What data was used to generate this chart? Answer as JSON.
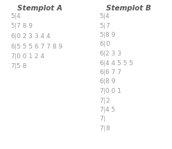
{
  "title_A": "Stemplot A",
  "title_B": "Stemplot B",
  "rows_A": [
    {
      "stem": "5",
      "leaves": "4"
    },
    {
      "stem": "5",
      "leaves": "7 8 9"
    },
    {
      "stem": "6",
      "leaves": "0 2 3 3 4 4"
    },
    {
      "stem": "6",
      "leaves": "5 5 5 6 7 7 8 9"
    },
    {
      "stem": "7",
      "leaves": "0 0 1 2 4"
    },
    {
      "stem": "7",
      "leaves": "5 8"
    }
  ],
  "rows_B": [
    {
      "stem": "5",
      "leaves": "4"
    },
    {
      "stem": "5",
      "leaves": "7"
    },
    {
      "stem": "5",
      "leaves": "8 9"
    },
    {
      "stem": "6",
      "leaves": "0"
    },
    {
      "stem": "6",
      "leaves": "2 3 3"
    },
    {
      "stem": "6",
      "leaves": "4 4 5 5 5"
    },
    {
      "stem": "6",
      "leaves": "6 7 7"
    },
    {
      "stem": "6",
      "leaves": "8 9"
    },
    {
      "stem": "7",
      "leaves": "0 0 1"
    },
    {
      "stem": "7",
      "leaves": "2"
    },
    {
      "stem": "7",
      "leaves": "4 5"
    },
    {
      "stem": "7",
      "leaves": ""
    },
    {
      "stem": "7",
      "leaves": "8"
    }
  ],
  "title_fontsize": 7.5,
  "row_fontsize": 6.5,
  "text_color": "#999999",
  "bar_color": "#aaaaaa",
  "bg_color": "#ffffff",
  "fig_width": 2.48,
  "fig_height": 2.15,
  "dpi": 100
}
